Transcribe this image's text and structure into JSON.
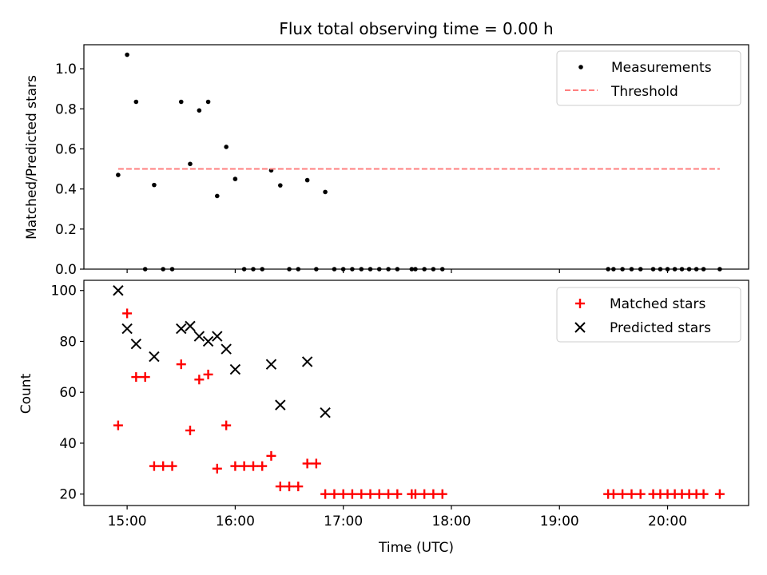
{
  "chart_data": [
    {
      "type": "scatter",
      "title": "Flux total observing time = 0.00 h",
      "xlabel": "",
      "ylabel": "Matched/Predicted stars",
      "xlim": [
        14.6,
        20.75
      ],
      "ylim": [
        0,
        1.12
      ],
      "yticks": [
        0,
        0.2,
        0.4,
        0.6,
        0.8,
        1.0
      ],
      "ytick_labels": [
        "0.0",
        "0.2",
        "0.4",
        "0.6",
        "0.8",
        "1.0"
      ],
      "legend_position": "top-right",
      "grid": false,
      "series": [
        {
          "name": "Measurements",
          "marker": "dot",
          "color": "#000000",
          "x": [
            14.917,
            15.0,
            15.083,
            15.167,
            15.25,
            15.333,
            15.417,
            15.5,
            15.583,
            15.667,
            15.75,
            15.833,
            15.917,
            16.0,
            16.083,
            16.167,
            16.25,
            16.333,
            16.417,
            16.5,
            16.583,
            16.667,
            16.75,
            16.833,
            16.917,
            17.0,
            17.083,
            17.167,
            17.25,
            17.333,
            17.417,
            17.5,
            17.633,
            17.667,
            17.75,
            17.833,
            17.917,
            19.45,
            19.5,
            19.583,
            19.667,
            19.75,
            19.867,
            19.933,
            20.0,
            20.067,
            20.133,
            20.2,
            20.267,
            20.333,
            20.483
          ],
          "y": [
            0.47,
            1.07,
            0.835,
            0.0,
            0.42,
            0.0,
            0.0,
            0.835,
            0.525,
            0.792,
            0.835,
            0.365,
            0.61,
            0.45,
            0.0,
            0.0,
            0.0,
            0.493,
            0.418,
            0.0,
            0.0,
            0.444,
            0.0,
            0.385,
            0.0,
            0.0,
            0.0,
            0.0,
            0.0,
            0.0,
            0.0,
            0.0,
            0.0,
            0.0,
            0.0,
            0.0,
            0.0,
            0.0,
            0.0,
            0.0,
            0.0,
            0.0,
            0.0,
            0.0,
            0.0,
            0.0,
            0.0,
            0.0,
            0.0,
            0.0,
            0.0
          ]
        },
        {
          "name": "Threshold",
          "type": "line",
          "style": "dashed",
          "color": "#ff7f7f",
          "x": [
            14.917,
            20.483
          ],
          "y": [
            0.5,
            0.5
          ]
        }
      ]
    },
    {
      "type": "scatter",
      "title": "",
      "xlabel": "Time (UTC)",
      "ylabel": "Count",
      "xlim": [
        14.6,
        20.75
      ],
      "ylim": [
        15.5,
        104
      ],
      "yticks": [
        20,
        40,
        60,
        80,
        100
      ],
      "ytick_labels": [
        "20",
        "40",
        "60",
        "80",
        "100"
      ],
      "xticks": [
        15,
        16,
        17,
        18,
        19,
        20
      ],
      "xtick_labels": [
        "15:00",
        "16:00",
        "17:00",
        "18:00",
        "19:00",
        "20:00"
      ],
      "legend_position": "top-right",
      "grid": false,
      "series": [
        {
          "name": "Matched stars",
          "marker": "plus",
          "color": "#ff0000",
          "x": [
            14.917,
            15.0,
            15.083,
            15.167,
            15.25,
            15.333,
            15.417,
            15.5,
            15.583,
            15.667,
            15.75,
            15.833,
            15.917,
            16.0,
            16.083,
            16.167,
            16.25,
            16.333,
            16.417,
            16.5,
            16.583,
            16.667,
            16.75,
            16.833,
            16.917,
            17.0,
            17.083,
            17.167,
            17.25,
            17.333,
            17.417,
            17.5,
            17.633,
            17.667,
            17.75,
            17.833,
            17.917,
            19.45,
            19.5,
            19.583,
            19.667,
            19.75,
            19.867,
            19.933,
            20.0,
            20.067,
            20.133,
            20.2,
            20.267,
            20.333,
            20.483
          ],
          "y": [
            47,
            91,
            66,
            66,
            31,
            31,
            31,
            71,
            45,
            65,
            67,
            30,
            47,
            31,
            31,
            31,
            31,
            35,
            23,
            23,
            23,
            32,
            32,
            20,
            20,
            20,
            20,
            20,
            20,
            20,
            20,
            20,
            20,
            20,
            20,
            20,
            20,
            20,
            20,
            20,
            20,
            20,
            20,
            20,
            20,
            20,
            20,
            20,
            20,
            20,
            20
          ]
        },
        {
          "name": "Predicted stars",
          "marker": "x",
          "color": "#000000",
          "x": [
            14.917,
            15.0,
            15.083,
            15.25,
            15.5,
            15.583,
            15.667,
            15.75,
            15.833,
            15.917,
            16.0,
            16.333,
            16.417,
            16.667,
            16.833
          ],
          "y": [
            100,
            85,
            79,
            74,
            85,
            86,
            82,
            80,
            82,
            77,
            69,
            71,
            55,
            72,
            52
          ]
        }
      ]
    }
  ]
}
